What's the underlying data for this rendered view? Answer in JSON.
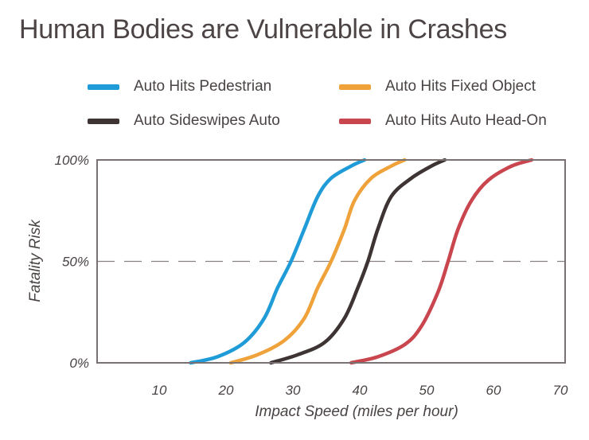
{
  "chart_data": {
    "type": "line",
    "title": "Human Bodies are Vulnerable in Crashes",
    "xlabel": "Impact Speed (miles per hour)",
    "ylabel": "Fatality Risk",
    "xlim": [
      0,
      70
    ],
    "ylim": [
      0,
      100
    ],
    "x_ticks": [
      "10",
      "20",
      "30",
      "40",
      "50",
      "60",
      "70"
    ],
    "y_ticks": [
      "0%",
      "50%",
      "100%"
    ],
    "reference_line": {
      "y": 50,
      "style": "dashed"
    },
    "grid": false,
    "legend_position": "top",
    "series": [
      {
        "name": "Auto Hits Pedestrian",
        "color": "#1f9bd7",
        "x": [
          14,
          18,
          22,
          25,
          27,
          29,
          31,
          33,
          35,
          38,
          40
        ],
        "y": [
          0,
          3,
          10,
          22,
          37,
          50,
          66,
          82,
          91,
          97,
          100
        ]
      },
      {
        "name": "Auto Hits Fixed Object",
        "color": "#f0a23a",
        "x": [
          20,
          24,
          28,
          31,
          33,
          35,
          37,
          38.5,
          41,
          44,
          46
        ],
        "y": [
          0,
          4,
          11,
          22,
          37,
          50,
          66,
          80,
          91,
          97,
          100
        ]
      },
      {
        "name": "Auto Sideswipes Auto",
        "color": "#3d3433",
        "x": [
          26,
          30,
          34,
          37,
          39,
          40.5,
          42,
          44,
          47,
          50,
          52
        ],
        "y": [
          0,
          4,
          10,
          22,
          37,
          50,
          66,
          82,
          91,
          97,
          100
        ]
      },
      {
        "name": "Auto Hits Auto Head-On",
        "color": "#c9464f",
        "x": [
          38,
          42,
          46,
          48.5,
          51,
          52.5,
          54,
          56,
          58.5,
          62,
          65
        ],
        "y": [
          0,
          3,
          9,
          18,
          35,
          50,
          66,
          80,
          90,
          97,
          100
        ]
      }
    ]
  }
}
